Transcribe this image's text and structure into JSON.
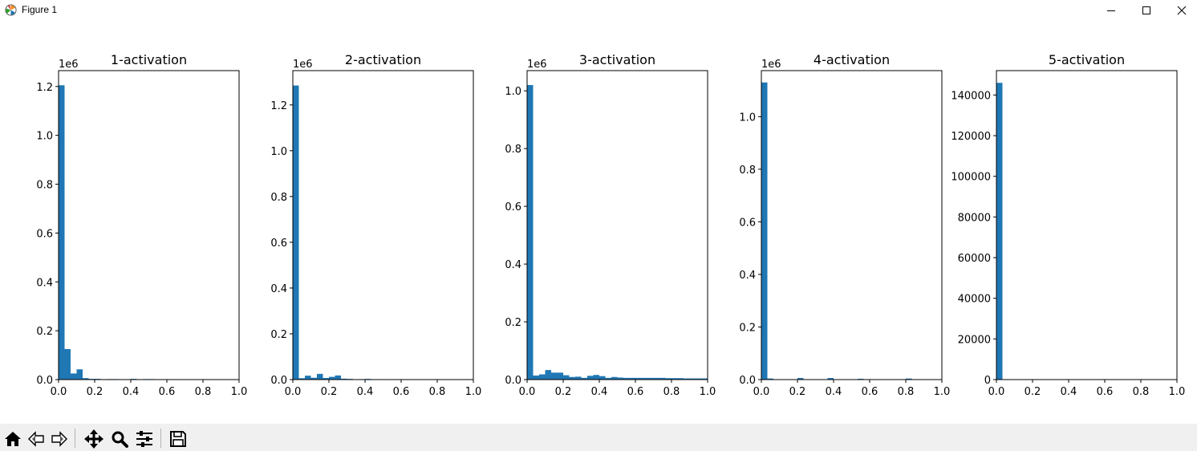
{
  "window": {
    "title": "Figure 1"
  },
  "colors": {
    "bar": "#1f77b4",
    "axes": "#000000",
    "toolbar_bg": "#f0f0f0"
  },
  "toolbar": {
    "buttons": [
      {
        "name": "home-button",
        "icon": "home-icon"
      },
      {
        "name": "back-button",
        "icon": "back-arrow-icon"
      },
      {
        "name": "forward-button",
        "icon": "forward-arrow-icon"
      },
      {
        "name": "pan-button",
        "icon": "pan-arrows-icon"
      },
      {
        "name": "zoom-button",
        "icon": "magnifier-icon"
      },
      {
        "name": "configure-subplots-button",
        "icon": "sliders-icon"
      },
      {
        "name": "save-button",
        "icon": "floppy-disk-icon"
      }
    ]
  },
  "chart_data": [
    {
      "type": "bar",
      "title": "1-activation",
      "offset_label": "1e6",
      "multiplier": 1000000,
      "xlim": [
        0,
        1
      ],
      "ylim": [
        0,
        1.265
      ],
      "xticks": [
        "0.0",
        "0.2",
        "0.4",
        "0.6",
        "0.8",
        "1.0"
      ],
      "yticks": [
        "0.0",
        "0.2",
        "0.4",
        "0.6",
        "0.8",
        "1.0",
        "1.2"
      ],
      "bin_width": 0.0333,
      "bin_starts": [
        0,
        0.0333,
        0.0667,
        0.1,
        0.1333,
        0.1667,
        0.2,
        0.2333,
        0.2667,
        0.3,
        0.3333,
        0.3667,
        0.4,
        0.4333,
        0.4667,
        0.5,
        0.5333,
        0.5667,
        0.6,
        0.6333,
        0.6667,
        0.7,
        0.7333,
        0.7667,
        0.8,
        0.8333,
        0.8667,
        0.9,
        0.9333,
        0.9667
      ],
      "values": [
        1.205,
        0.125,
        0.025,
        0.042,
        0.006,
        0.003,
        0.003,
        0.001,
        0.002,
        0.002,
        0.001,
        0.001,
        0.003,
        0.001,
        0.002,
        0.002,
        0.001,
        0,
        0,
        0,
        0,
        0,
        0,
        0,
        0,
        0,
        0,
        0,
        0,
        0
      ]
    },
    {
      "type": "bar",
      "title": "2-activation",
      "offset_label": "1e6",
      "multiplier": 1000000,
      "xlim": [
        0,
        1
      ],
      "ylim": [
        0,
        1.35
      ],
      "xticks": [
        "0.0",
        "0.2",
        "0.4",
        "0.6",
        "0.8",
        "1.0"
      ],
      "yticks": [
        "0.0",
        "0.2",
        "0.4",
        "0.6",
        "0.8",
        "1.0",
        "1.2"
      ],
      "bin_width": 0.0333,
      "bin_starts": [
        0,
        0.0333,
        0.0667,
        0.1,
        0.1333,
        0.1667,
        0.2,
        0.2333,
        0.2667,
        0.3,
        0.3333,
        0.3667,
        0.4,
        0.4333,
        0.4667,
        0.5,
        0.5333,
        0.5667,
        0.6,
        0.6333,
        0.6667,
        0.7,
        0.7333,
        0.7667,
        0.8,
        0.8333,
        0.8667,
        0.9,
        0.9333,
        0.9667
      ],
      "values": [
        1.285,
        0.006,
        0.017,
        0.008,
        0.025,
        0.007,
        0.012,
        0.018,
        0.004,
        0.003,
        0.001,
        0.002,
        0.003,
        0.001,
        0,
        0,
        0,
        0,
        0,
        0,
        0,
        0,
        0,
        0,
        0,
        0,
        0,
        0,
        0,
        0
      ]
    },
    {
      "type": "bar",
      "title": "3-activation",
      "offset_label": "1e6",
      "multiplier": 1000000,
      "xlim": [
        0,
        1
      ],
      "ylim": [
        0,
        1.07
      ],
      "xticks": [
        "0.0",
        "0.2",
        "0.4",
        "0.6",
        "0.8",
        "1.0"
      ],
      "yticks": [
        "0.0",
        "0.2",
        "0.4",
        "0.6",
        "0.8",
        "1.0"
      ],
      "bin_width": 0.0333,
      "bin_starts": [
        0,
        0.0333,
        0.0667,
        0.1,
        0.1333,
        0.1667,
        0.2,
        0.2333,
        0.2667,
        0.3,
        0.3333,
        0.3667,
        0.4,
        0.4333,
        0.4667,
        0.5,
        0.5333,
        0.5667,
        0.6,
        0.6333,
        0.6667,
        0.7,
        0.7333,
        0.7667,
        0.8,
        0.8333,
        0.8667,
        0.9,
        0.9333,
        0.9667
      ],
      "values": [
        1.02,
        0.014,
        0.018,
        0.033,
        0.024,
        0.024,
        0.015,
        0.009,
        0.01,
        0.006,
        0.013,
        0.016,
        0.012,
        0.006,
        0.009,
        0.007,
        0.006,
        0.006,
        0.006,
        0.006,
        0.006,
        0.006,
        0.006,
        0.005,
        0.005,
        0.005,
        0.004,
        0.004,
        0.004,
        0.004
      ]
    },
    {
      "type": "bar",
      "title": "4-activation",
      "offset_label": "1e6",
      "multiplier": 1000000,
      "xlim": [
        0,
        1
      ],
      "ylim": [
        0,
        1.175
      ],
      "xticks": [
        "0.0",
        "0.2",
        "0.4",
        "0.6",
        "0.8",
        "1.0"
      ],
      "yticks": [
        "0.0",
        "0.2",
        "0.4",
        "0.6",
        "0.8",
        "1.0"
      ],
      "bin_width": 0.0333,
      "bin_starts": [
        0,
        0.0333,
        0.0667,
        0.1,
        0.1333,
        0.1667,
        0.2,
        0.2333,
        0.2667,
        0.3,
        0.3333,
        0.3667,
        0.4,
        0.4333,
        0.4667,
        0.5,
        0.5333,
        0.5667,
        0.6,
        0.6333,
        0.6667,
        0.7,
        0.7333,
        0.7667,
        0.8,
        0.8333,
        0.8667,
        0.9,
        0.9333,
        0.9667
      ],
      "values": [
        1.13,
        0.004,
        0,
        0,
        0,
        0,
        0.006,
        0,
        0,
        0,
        0,
        0.006,
        0,
        0,
        0,
        0,
        0.003,
        0,
        0,
        0,
        0,
        0,
        0,
        0,
        0.004,
        0,
        0,
        0,
        0,
        0
      ]
    },
    {
      "type": "bar",
      "title": "5-activation",
      "offset_label": "",
      "multiplier": 1,
      "xlim": [
        0,
        1
      ],
      "ylim": [
        0,
        152000
      ],
      "xticks": [
        "0.0",
        "0.2",
        "0.4",
        "0.6",
        "0.8",
        "1.0"
      ],
      "yticks": [
        "0",
        "20000",
        "40000",
        "60000",
        "80000",
        "100000",
        "120000",
        "140000"
      ],
      "bin_width": 0.0333,
      "bin_starts": [
        0,
        0.0333,
        0.0667,
        0.1,
        0.1333,
        0.1667,
        0.2,
        0.2333,
        0.2667,
        0.3,
        0.3333,
        0.3667,
        0.4,
        0.4333,
        0.4667,
        0.5,
        0.5333,
        0.5667,
        0.6,
        0.6333,
        0.6667,
        0.7,
        0.7333,
        0.7667,
        0.8,
        0.8333,
        0.8667,
        0.9,
        0.9333,
        0.9667
      ],
      "values": [
        146000,
        0,
        0,
        0,
        0,
        0,
        0,
        0,
        0,
        0,
        0,
        0,
        0,
        0,
        0,
        0,
        0,
        0,
        0,
        0,
        0,
        0,
        0,
        0,
        0,
        0,
        0,
        0,
        0,
        0
      ]
    }
  ]
}
